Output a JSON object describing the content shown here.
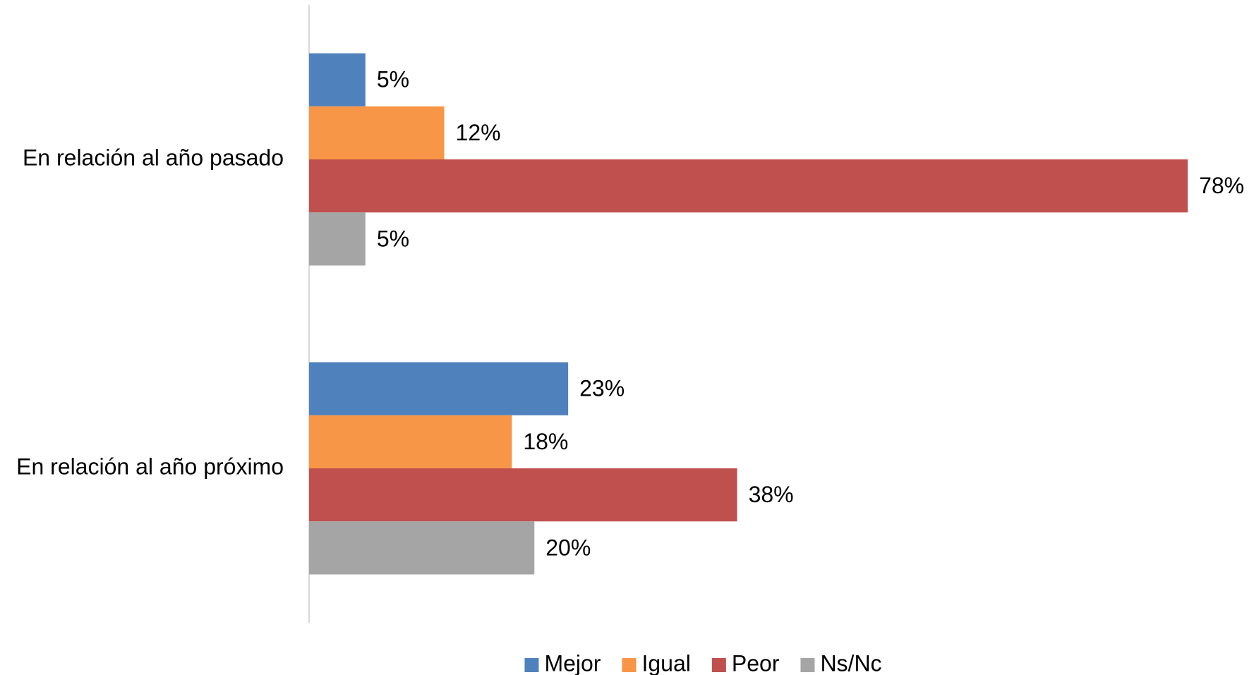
{
  "chart_data": {
    "type": "bar",
    "orientation": "horizontal",
    "categories": [
      "En relación al año pasado",
      "En relación al año próximo"
    ],
    "series": [
      {
        "name": "Mejor",
        "color": "#4f81bd",
        "values": [
          5,
          23
        ],
        "value_labels": [
          "5%",
          "23%"
        ]
      },
      {
        "name": "Igual",
        "color": "#f79646",
        "values": [
          12,
          18
        ],
        "value_labels": [
          "12%",
          "18%"
        ]
      },
      {
        "name": "Peor",
        "color": "#c0504d",
        "values": [
          78,
          38
        ],
        "value_labels": [
          "78%",
          "38%"
        ]
      },
      {
        "name": "Ns/Nc",
        "color": "#a5a5a5",
        "values": [
          5,
          20
        ],
        "value_labels": [
          "5%",
          "20%"
        ]
      }
    ],
    "xlim": [
      0,
      80
    ],
    "legend": "bottom"
  }
}
